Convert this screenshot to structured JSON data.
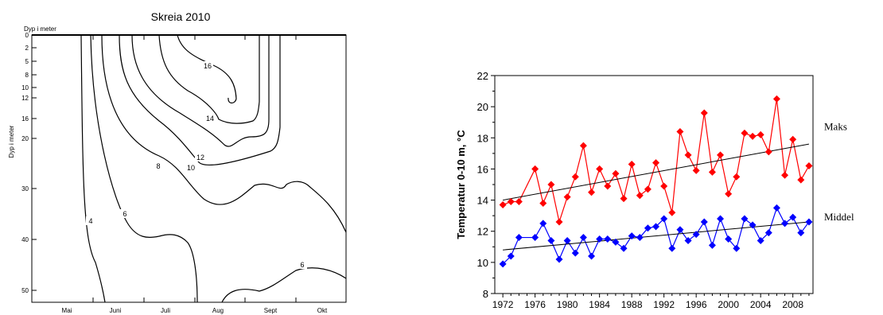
{
  "chart_data": [
    {
      "type": "contour",
      "title": "Skreia 2010",
      "ylabel_top": "Dyp i meter",
      "ylabel_side": "Dyp i meter",
      "y_ticks": [
        "0",
        "2",
        "5",
        "8",
        "10",
        "12",
        "16",
        "20",
        "30",
        "40",
        "50"
      ],
      "x_ticks": [
        "Mai",
        "Juni",
        "Juli",
        "Aug",
        "Sept",
        "Okt"
      ],
      "contour_labels": [
        "16",
        "14",
        "12",
        "10",
        "8",
        "6",
        "4",
        "6"
      ],
      "ylim": [
        0,
        52
      ],
      "invert_y": true
    },
    {
      "type": "line",
      "ylabel": "Temperatur 0-10 m, °C",
      "xlim": [
        1971,
        2010.5
      ],
      "ylim": [
        8,
        22
      ],
      "y_ticks": [
        "8",
        "10",
        "12",
        "14",
        "16",
        "18",
        "20",
        "22"
      ],
      "x_ticks": [
        "1972",
        "1976",
        "1980",
        "1984",
        "1988",
        "1992",
        "1996",
        "2000",
        "2004",
        "2008"
      ],
      "series": [
        {
          "name": "Maks",
          "color": "#ff0000",
          "x": [
            1972,
            1973,
            1974,
            1976,
            1977,
            1978,
            1979,
            1980,
            1981,
            1982,
            1983,
            1984,
            1985,
            1986,
            1987,
            1988,
            1989,
            1990,
            1991,
            1992,
            1993,
            1994,
            1995,
            1996,
            1997,
            1998,
            1999,
            2000,
            2001,
            2002,
            2003,
            2004,
            2005,
            2006,
            2007,
            2008,
            2009,
            2010
          ],
          "values": [
            13.7,
            13.9,
            13.9,
            16.0,
            13.8,
            15.0,
            12.6,
            14.2,
            15.5,
            17.5,
            14.5,
            16.0,
            14.9,
            15.7,
            14.1,
            16.3,
            14.3,
            14.7,
            16.4,
            14.9,
            13.2,
            18.4,
            16.9,
            15.9,
            19.6,
            15.8,
            16.9,
            14.4,
            15.5,
            18.3,
            18.1,
            18.2,
            17.1,
            20.5,
            15.6,
            17.9,
            15.3,
            16.2
          ],
          "trend": [
            14.0,
            17.6
          ]
        },
        {
          "name": "Middel",
          "color": "#0000ff",
          "x": [
            1972,
            1973,
            1974,
            1976,
            1977,
            1978,
            1979,
            1980,
            1981,
            1982,
            1983,
            1984,
            1985,
            1986,
            1987,
            1988,
            1989,
            1990,
            1991,
            1992,
            1993,
            1994,
            1995,
            1996,
            1997,
            1998,
            1999,
            2000,
            2001,
            2002,
            2003,
            2004,
            2005,
            2006,
            2007,
            2008,
            2009,
            2010
          ],
          "values": [
            9.9,
            10.4,
            11.6,
            11.6,
            12.5,
            11.4,
            10.2,
            11.4,
            10.6,
            11.6,
            10.4,
            11.5,
            11.5,
            11.3,
            10.9,
            11.7,
            11.6,
            12.2,
            12.3,
            12.8,
            10.9,
            12.1,
            11.4,
            11.8,
            12.6,
            11.1,
            12.8,
            11.5,
            10.9,
            12.8,
            12.4,
            11.4,
            11.9,
            13.5,
            12.5,
            12.9,
            11.9,
            12.6
          ],
          "trend": [
            10.8,
            12.6
          ]
        }
      ]
    }
  ]
}
